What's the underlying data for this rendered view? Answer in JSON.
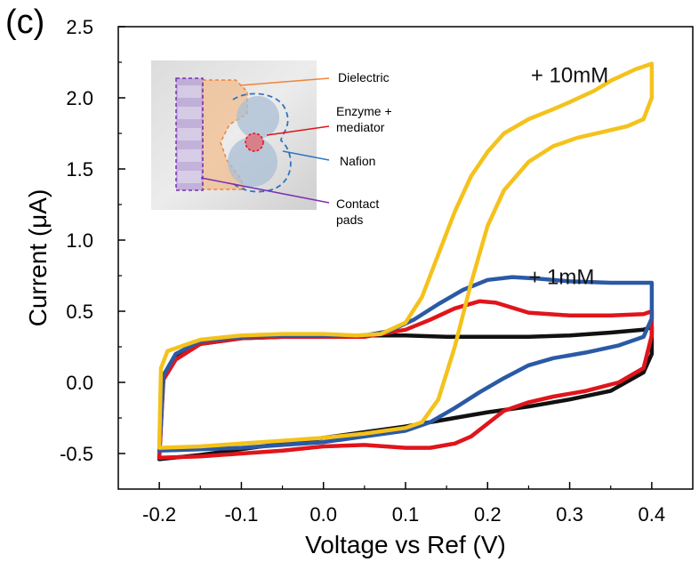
{
  "panel_label": "(c)",
  "chart_data": {
    "type": "line",
    "title": "",
    "xlabel": "Voltage vs Ref (V)",
    "ylabel": "Current (μA)",
    "xlim": [
      -0.25,
      0.45
    ],
    "ylim": [
      -0.75,
      2.5
    ],
    "x_ticks": [
      -0.2,
      -0.1,
      0.0,
      0.1,
      0.2,
      0.3,
      0.4
    ],
    "x_tick_labels": [
      "-0.2",
      "-0.1",
      "0.0",
      "0.1",
      "0.2",
      "0.3",
      "0.4"
    ],
    "y_ticks": [
      -0.5,
      0.0,
      0.5,
      1.0,
      1.5,
      2.0,
      2.5
    ],
    "y_tick_labels": [
      "-0.5",
      "0.0",
      "0.5",
      "1.0",
      "1.5",
      "2.0",
      "2.5"
    ],
    "grid": false,
    "series": [
      {
        "color": "#111111",
        "points": [
          [
            -0.2,
            -0.53
          ],
          [
            -0.195,
            0.05
          ],
          [
            -0.18,
            0.18
          ],
          [
            -0.15,
            0.27
          ],
          [
            -0.1,
            0.31
          ],
          [
            -0.05,
            0.32
          ],
          [
            0.0,
            0.33
          ],
          [
            0.05,
            0.33
          ],
          [
            0.1,
            0.33
          ],
          [
            0.15,
            0.32
          ],
          [
            0.2,
            0.32
          ],
          [
            0.25,
            0.32
          ],
          [
            0.3,
            0.33
          ],
          [
            0.35,
            0.35
          ],
          [
            0.39,
            0.37
          ],
          [
            0.4,
            0.39
          ],
          [
            0.4,
            0.2
          ],
          [
            0.39,
            0.07
          ],
          [
            0.35,
            -0.06
          ],
          [
            0.3,
            -0.12
          ],
          [
            0.25,
            -0.17
          ],
          [
            0.2,
            -0.21
          ],
          [
            0.15,
            -0.26
          ],
          [
            0.1,
            -0.31
          ],
          [
            0.05,
            -0.35
          ],
          [
            0.0,
            -0.39
          ],
          [
            -0.05,
            -0.43
          ],
          [
            -0.1,
            -0.47
          ],
          [
            -0.15,
            -0.51
          ],
          [
            -0.2,
            -0.54
          ]
        ]
      },
      {
        "color": "#e0151b",
        "points": [
          [
            -0.2,
            -0.52
          ],
          [
            -0.195,
            0.02
          ],
          [
            -0.18,
            0.16
          ],
          [
            -0.15,
            0.27
          ],
          [
            -0.1,
            0.31
          ],
          [
            -0.05,
            0.32
          ],
          [
            0.0,
            0.32
          ],
          [
            0.05,
            0.32
          ],
          [
            0.1,
            0.37
          ],
          [
            0.13,
            0.44
          ],
          [
            0.16,
            0.52
          ],
          [
            0.19,
            0.57
          ],
          [
            0.21,
            0.56
          ],
          [
            0.25,
            0.49
          ],
          [
            0.3,
            0.47
          ],
          [
            0.35,
            0.47
          ],
          [
            0.39,
            0.48
          ],
          [
            0.4,
            0.5
          ],
          [
            0.4,
            0.33
          ],
          [
            0.39,
            0.1
          ],
          [
            0.36,
            0.0
          ],
          [
            0.32,
            -0.06
          ],
          [
            0.28,
            -0.1
          ],
          [
            0.25,
            -0.14
          ],
          [
            0.22,
            -0.2
          ],
          [
            0.2,
            -0.29
          ],
          [
            0.18,
            -0.38
          ],
          [
            0.16,
            -0.43
          ],
          [
            0.13,
            -0.46
          ],
          [
            0.1,
            -0.46
          ],
          [
            0.05,
            -0.44
          ],
          [
            0.0,
            -0.45
          ],
          [
            -0.05,
            -0.48
          ],
          [
            -0.1,
            -0.5
          ],
          [
            -0.15,
            -0.52
          ],
          [
            -0.2,
            -0.53
          ]
        ]
      },
      {
        "color": "#2a5aa5",
        "points": [
          [
            -0.2,
            -0.48
          ],
          [
            -0.195,
            0.05
          ],
          [
            -0.18,
            0.2
          ],
          [
            -0.15,
            0.29
          ],
          [
            -0.1,
            0.32
          ],
          [
            -0.05,
            0.33
          ],
          [
            0.0,
            0.33
          ],
          [
            0.05,
            0.33
          ],
          [
            0.08,
            0.36
          ],
          [
            0.11,
            0.44
          ],
          [
            0.14,
            0.55
          ],
          [
            0.17,
            0.65
          ],
          [
            0.2,
            0.72
          ],
          [
            0.23,
            0.74
          ],
          [
            0.26,
            0.73
          ],
          [
            0.3,
            0.71
          ],
          [
            0.35,
            0.7
          ],
          [
            0.39,
            0.7
          ],
          [
            0.4,
            0.7
          ],
          [
            0.4,
            0.45
          ],
          [
            0.39,
            0.32
          ],
          [
            0.36,
            0.26
          ],
          [
            0.32,
            0.21
          ],
          [
            0.28,
            0.17
          ],
          [
            0.25,
            0.12
          ],
          [
            0.22,
            0.03
          ],
          [
            0.19,
            -0.07
          ],
          [
            0.16,
            -0.18
          ],
          [
            0.13,
            -0.28
          ],
          [
            0.1,
            -0.34
          ],
          [
            0.05,
            -0.38
          ],
          [
            0.0,
            -0.42
          ],
          [
            -0.05,
            -0.44
          ],
          [
            -0.1,
            -0.46
          ],
          [
            -0.15,
            -0.47
          ],
          [
            -0.2,
            -0.48
          ]
        ]
      },
      {
        "color": "#f4c21c",
        "points": [
          [
            -0.2,
            -0.45
          ],
          [
            -0.198,
            0.1
          ],
          [
            -0.19,
            0.22
          ],
          [
            -0.15,
            0.3
          ],
          [
            -0.1,
            0.33
          ],
          [
            -0.05,
            0.34
          ],
          [
            0.0,
            0.34
          ],
          [
            0.04,
            0.33
          ],
          [
            0.07,
            0.34
          ],
          [
            0.1,
            0.42
          ],
          [
            0.12,
            0.6
          ],
          [
            0.14,
            0.9
          ],
          [
            0.16,
            1.2
          ],
          [
            0.18,
            1.45
          ],
          [
            0.2,
            1.62
          ],
          [
            0.22,
            1.75
          ],
          [
            0.25,
            1.85
          ],
          [
            0.28,
            1.92
          ],
          [
            0.3,
            1.97
          ],
          [
            0.33,
            2.05
          ],
          [
            0.35,
            2.12
          ],
          [
            0.38,
            2.2
          ],
          [
            0.395,
            2.23
          ],
          [
            0.4,
            2.24
          ],
          [
            0.4,
            2.0
          ],
          [
            0.39,
            1.85
          ],
          [
            0.37,
            1.8
          ],
          [
            0.34,
            1.76
          ],
          [
            0.31,
            1.72
          ],
          [
            0.28,
            1.66
          ],
          [
            0.25,
            1.55
          ],
          [
            0.22,
            1.35
          ],
          [
            0.2,
            1.1
          ],
          [
            0.18,
            0.7
          ],
          [
            0.16,
            0.25
          ],
          [
            0.14,
            -0.12
          ],
          [
            0.12,
            -0.28
          ],
          [
            0.1,
            -0.32
          ],
          [
            0.05,
            -0.36
          ],
          [
            0.0,
            -0.39
          ],
          [
            -0.05,
            -0.41
          ],
          [
            -0.1,
            -0.43
          ],
          [
            -0.15,
            -0.45
          ],
          [
            -0.2,
            -0.46
          ]
        ]
      }
    ],
    "annotations": [
      {
        "text": "+ 10mM",
        "x": 0.3,
        "y": 2.11,
        "anchor": "middle"
      },
      {
        "text": "+ 1mM",
        "x": 0.29,
        "y": 0.69,
        "anchor": "middle"
      }
    ]
  },
  "inset": {
    "labels": {
      "dielectric": "Dielectric",
      "enzyme_line1": "Enzyme +",
      "enzyme_line2": "mediator",
      "nafion": "Nafion",
      "contact_line1": "Contact",
      "contact_line2": "pads"
    },
    "colors": {
      "dielectric": "#f0843a",
      "enzyme": "#e0151b",
      "nafion": "#2f74c0",
      "contact": "#7b2fb6"
    }
  }
}
